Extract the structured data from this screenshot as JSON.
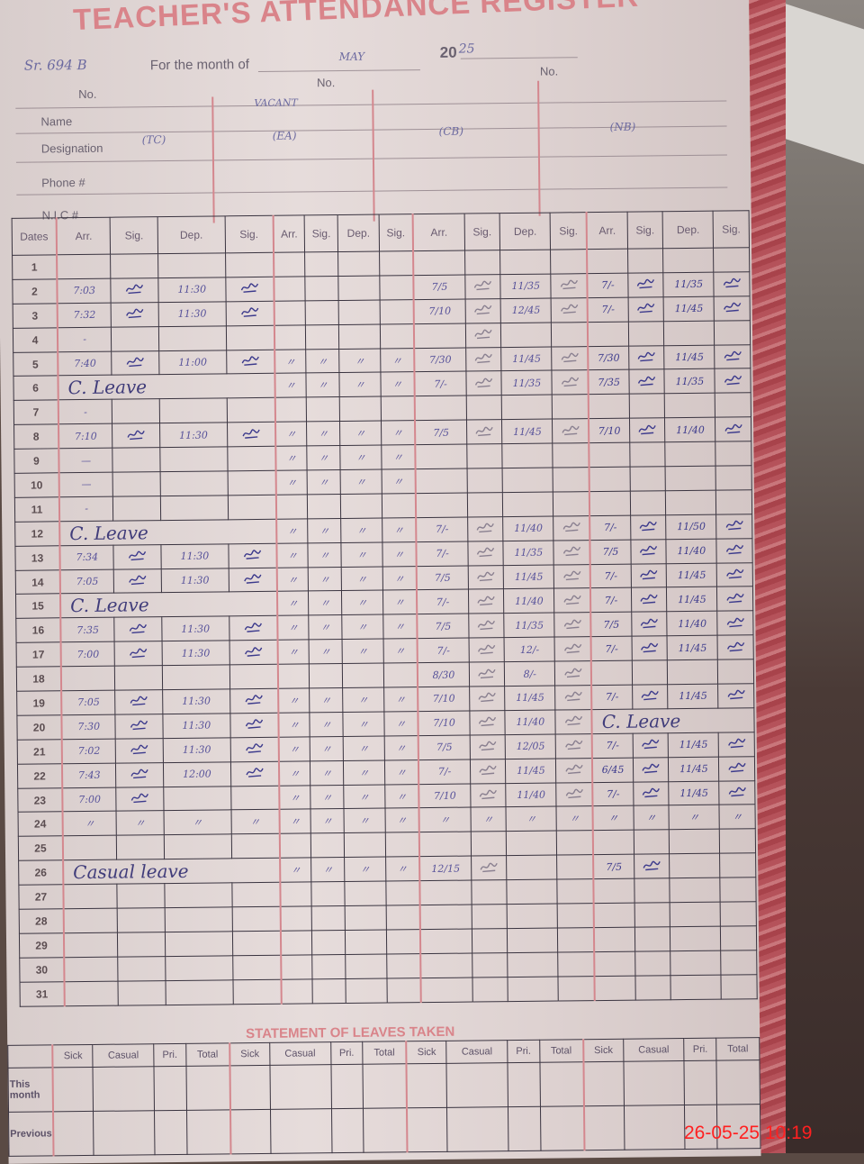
{
  "register": {
    "title": "TEACHER'S ATTENDANCE REGISTER",
    "serial_handwritten": "Sr. 694 B",
    "month_label": "For the month of",
    "month_value": "MAY",
    "year_prefix": "20",
    "year_suffix": "25",
    "no_label": "No.",
    "field_labels": {
      "name": "Name",
      "designation": "Designation",
      "phone": "Phone #",
      "nic": "N.I.C #"
    },
    "teachers": [
      {
        "name": "",
        "designation": "(TC)"
      },
      {
        "name": "VACANT",
        "designation": "(EA)"
      },
      {
        "name": "",
        "designation": "(CB)"
      },
      {
        "name": "",
        "designation": "(NB)"
      }
    ],
    "column_headers": {
      "dates": "Dates",
      "cols": [
        "Arr.",
        "Sig.",
        "Dep.",
        "Sig."
      ]
    },
    "sig_colors": {
      "ink_blue": "#3c3a8c",
      "pencil": "#8a8090"
    },
    "rows": [
      {
        "date": "1",
        "t": [
          [
            "",
            "",
            "",
            ""
          ],
          [
            "",
            "",
            "",
            ""
          ],
          [
            "",
            "",
            "",
            ""
          ],
          [
            "",
            "",
            "",
            ""
          ]
        ]
      },
      {
        "date": "2",
        "t": [
          [
            "7:03",
            "#sig",
            "11:30",
            "#sig"
          ],
          [
            "",
            "",
            "",
            ""
          ],
          [
            "7/5",
            "#sig",
            "11/35",
            "#sig"
          ],
          [
            "7/-",
            "#sig",
            "11/35",
            "#sig"
          ]
        ]
      },
      {
        "date": "3",
        "t": [
          [
            "7:32",
            "#sig",
            "11:30",
            "#sig"
          ],
          [
            "",
            "",
            "",
            ""
          ],
          [
            "7/10",
            "#sig",
            "12/45",
            "#sig"
          ],
          [
            "7/-",
            "#sig",
            "11/45",
            "#sig"
          ]
        ]
      },
      {
        "date": "4",
        "t": [
          [
            "-",
            "",
            "",
            ""
          ],
          [
            "",
            "",
            "",
            ""
          ],
          [
            "",
            "#sig",
            "",
            ""
          ],
          [
            "",
            "",
            "",
            ""
          ]
        ]
      },
      {
        "date": "5",
        "t": [
          [
            "7:40",
            "#sig",
            "11:00",
            "#sig"
          ],
          [
            "〃",
            "〃",
            "〃",
            "〃"
          ],
          [
            "7/30",
            "#sig",
            "11/45",
            "#sig"
          ],
          [
            "7/30",
            "#sig",
            "11/45",
            "#sig"
          ]
        ]
      },
      {
        "date": "6",
        "t": [
          "C. Leave",
          [
            "〃",
            "〃",
            "〃",
            "〃"
          ],
          [
            "7/-",
            "#sig",
            "11/35",
            "#sig"
          ],
          [
            "7/35",
            "#sig",
            "11/35",
            "#sig"
          ]
        ]
      },
      {
        "date": "7",
        "t": [
          [
            "-",
            "",
            "",
            ""
          ],
          [
            "",
            "",
            "",
            ""
          ],
          [
            "",
            "",
            "",
            ""
          ],
          [
            "",
            "",
            "",
            ""
          ]
        ]
      },
      {
        "date": "8",
        "t": [
          [
            "7:10",
            "#sig",
            "11:30",
            "#sig"
          ],
          [
            "〃",
            "〃",
            "〃",
            "〃"
          ],
          [
            "7/5",
            "#sig",
            "11/45",
            "#sig"
          ],
          [
            "7/10",
            "#sig",
            "11/40",
            "#sig"
          ]
        ]
      },
      {
        "date": "9",
        "t": [
          [
            "—",
            "",
            "",
            ""
          ],
          [
            "〃",
            "〃",
            "〃",
            "〃"
          ],
          [
            "",
            "",
            "",
            ""
          ],
          [
            "",
            "",
            "",
            ""
          ]
        ]
      },
      {
        "date": "10",
        "t": [
          [
            "—",
            "",
            "",
            ""
          ],
          [
            "〃",
            "〃",
            "〃",
            "〃"
          ],
          [
            "",
            "",
            "",
            ""
          ],
          [
            "",
            "",
            "",
            ""
          ]
        ]
      },
      {
        "date": "11",
        "t": [
          [
            "-",
            "",
            "",
            ""
          ],
          [
            "",
            "",
            "",
            ""
          ],
          [
            "",
            "",
            "",
            ""
          ],
          [
            "",
            "",
            "",
            ""
          ]
        ]
      },
      {
        "date": "12",
        "t": [
          "C. Leave",
          [
            "〃",
            "〃",
            "〃",
            "〃"
          ],
          [
            "7/-",
            "#sig",
            "11/40",
            "#sig"
          ],
          [
            "7/-",
            "#sig",
            "11/50",
            "#sig"
          ]
        ]
      },
      {
        "date": "13",
        "t": [
          [
            "7:34",
            "#sig",
            "11:30",
            "#sig"
          ],
          [
            "〃",
            "〃",
            "〃",
            "〃"
          ],
          [
            "7/-",
            "#sig",
            "11/35",
            "#sig"
          ],
          [
            "7/5",
            "#sig",
            "11/40",
            "#sig"
          ]
        ]
      },
      {
        "date": "14",
        "t": [
          [
            "7:05",
            "#sig",
            "11:30",
            "#sig"
          ],
          [
            "〃",
            "〃",
            "〃",
            "〃"
          ],
          [
            "7/5",
            "#sig",
            "11/45",
            "#sig"
          ],
          [
            "7/-",
            "#sig",
            "11/45",
            "#sig"
          ]
        ]
      },
      {
        "date": "15",
        "t": [
          "C. Leave",
          [
            "〃",
            "〃",
            "〃",
            "〃"
          ],
          [
            "7/-",
            "#sig",
            "11/40",
            "#sig"
          ],
          [
            "7/-",
            "#sig",
            "11/45",
            "#sig"
          ]
        ]
      },
      {
        "date": "16",
        "t": [
          [
            "7:35",
            "#sig",
            "11:30",
            "#sig"
          ],
          [
            "〃",
            "〃",
            "〃",
            "〃"
          ],
          [
            "7/5",
            "#sig",
            "11/35",
            "#sig"
          ],
          [
            "7/5",
            "#sig",
            "11/40",
            "#sig"
          ]
        ]
      },
      {
        "date": "17",
        "t": [
          [
            "7:00",
            "#sig",
            "11:30",
            "#sig"
          ],
          [
            "〃",
            "〃",
            "〃",
            "〃"
          ],
          [
            "7/-",
            "#sig",
            "12/-",
            "#sig"
          ],
          [
            "7/-",
            "#sig",
            "11/45",
            "#sig"
          ]
        ]
      },
      {
        "date": "18",
        "t": [
          [
            "",
            "",
            "",
            ""
          ],
          [
            "",
            "",
            "",
            ""
          ],
          [
            "8/30",
            "#sig",
            "8/-",
            "#sig"
          ],
          [
            "",
            "",
            "",
            ""
          ]
        ]
      },
      {
        "date": "19",
        "t": [
          [
            "7:05",
            "#sig",
            "11:30",
            "#sig"
          ],
          [
            "〃",
            "〃",
            "〃",
            "〃"
          ],
          [
            "7/10",
            "#sig",
            "11/45",
            "#sig"
          ],
          [
            "7/-",
            "#sig",
            "11/45",
            "#sig"
          ]
        ]
      },
      {
        "date": "20",
        "t": [
          [
            "7:30",
            "#sig",
            "11:30",
            "#sig"
          ],
          [
            "〃",
            "〃",
            "〃",
            "〃"
          ],
          [
            "7/10",
            "#sig",
            "11/40",
            "#sig"
          ],
          "C. Leave"
        ]
      },
      {
        "date": "21",
        "t": [
          [
            "7:02",
            "#sig",
            "11:30",
            "#sig"
          ],
          [
            "〃",
            "〃",
            "〃",
            "〃"
          ],
          [
            "7/5",
            "#sig",
            "12/05",
            "#sig"
          ],
          [
            "7/-",
            "#sig",
            "11/45",
            "#sig"
          ]
        ]
      },
      {
        "date": "22",
        "t": [
          [
            "7:43",
            "#sig",
            "12:00",
            "#sig"
          ],
          [
            "〃",
            "〃",
            "〃",
            "〃"
          ],
          [
            "7/-",
            "#sig",
            "11/45",
            "#sig"
          ],
          [
            "6/45",
            "#sig",
            "11/45",
            "#sig"
          ]
        ]
      },
      {
        "date": "23",
        "t": [
          [
            "7:00",
            "#sig",
            "",
            ""
          ],
          [
            "〃",
            "〃",
            "〃",
            "〃"
          ],
          [
            "7/10",
            "#sig",
            "11/40",
            "#sig"
          ],
          [
            "7/-",
            "#sig",
            "11/45",
            "#sig"
          ]
        ]
      },
      {
        "date": "24",
        "t": [
          [
            "〃",
            "〃",
            "〃",
            "〃"
          ],
          [
            "〃",
            "〃",
            "〃",
            "〃"
          ],
          [
            "〃",
            "〃",
            "〃",
            "〃"
          ],
          [
            "〃",
            "〃",
            "〃",
            "〃"
          ]
        ]
      },
      {
        "date": "25",
        "t": [
          [
            "",
            "",
            "",
            ""
          ],
          [
            "",
            "",
            "",
            ""
          ],
          [
            "",
            "",
            "",
            ""
          ],
          [
            "",
            "",
            "",
            ""
          ]
        ]
      },
      {
        "date": "26",
        "t": [
          "Casual leave",
          [
            "〃",
            "〃",
            "〃",
            "〃"
          ],
          [
            "12/15",
            "#sig",
            "",
            ""
          ],
          [
            "7/5",
            "#sig",
            "",
            ""
          ]
        ]
      },
      {
        "date": "27",
        "t": [
          [
            "",
            "",
            "",
            ""
          ],
          [
            "",
            "",
            "",
            ""
          ],
          [
            "",
            "",
            "",
            ""
          ],
          [
            "",
            "",
            "",
            ""
          ]
        ]
      },
      {
        "date": "28",
        "t": [
          [
            "",
            "",
            "",
            ""
          ],
          [
            "",
            "",
            "",
            ""
          ],
          [
            "",
            "",
            "",
            ""
          ],
          [
            "",
            "",
            "",
            ""
          ]
        ]
      },
      {
        "date": "29",
        "t": [
          [
            "",
            "",
            "",
            ""
          ],
          [
            "",
            "",
            "",
            ""
          ],
          [
            "",
            "",
            "",
            ""
          ],
          [
            "",
            "",
            "",
            ""
          ]
        ]
      },
      {
        "date": "30",
        "t": [
          [
            "",
            "",
            "",
            ""
          ],
          [
            "",
            "",
            "",
            ""
          ],
          [
            "",
            "",
            "",
            ""
          ],
          [
            "",
            "",
            "",
            ""
          ]
        ]
      },
      {
        "date": "31",
        "t": [
          [
            "",
            "",
            "",
            ""
          ],
          [
            "",
            "",
            "",
            ""
          ],
          [
            "",
            "",
            "",
            ""
          ],
          [
            "",
            "",
            "",
            ""
          ]
        ]
      }
    ]
  },
  "statement": {
    "title": "STATEMENT OF LEAVES TAKEN",
    "cols": [
      "Sick",
      "Casual",
      "Pri.",
      "Total"
    ],
    "row_labels": [
      "This month",
      "Previous"
    ]
  },
  "camera_timestamp": "26-05-25  10:19",
  "colors": {
    "print_red": "#d9848a",
    "ink_blue": "#403c7a",
    "timestamp": "#ff2020"
  }
}
